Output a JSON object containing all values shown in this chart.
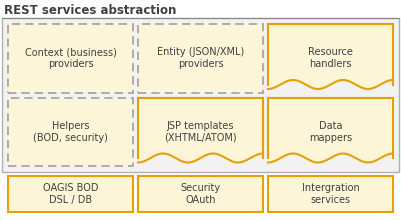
{
  "title": "REST services abstraction",
  "bg_color": "#ffffff",
  "outer_box_edgecolor": "#b0b0b0",
  "outer_box_facecolor": "#f2f2f2",
  "cell_bg": "#fdf5d8",
  "cell_border_dashed": "#a0a0a0",
  "cell_border_wave": "#e8a000",
  "bottom_box_bg": "#fdf5d8",
  "bottom_box_border": "#e8a000",
  "text_color": "#404040",
  "rows": [
    [
      {
        "text": "Context (business)\nproviders",
        "style": "dashed"
      },
      {
        "text": "Entity (JSON/XML)\nproviders",
        "style": "dashed"
      },
      {
        "text": "Resource\nhandlers",
        "style": "wave"
      }
    ],
    [
      {
        "text": "Helpers\n(BOD, security)",
        "style": "dashed"
      },
      {
        "text": "JSP templates\n(XHTML/ATOM)",
        "style": "wave"
      },
      {
        "text": "Data\nmappers",
        "style": "wave"
      }
    ]
  ],
  "bottom_row": [
    {
      "text": "OAGIS BOD\nDSL / DB"
    },
    {
      "text": "Security\nOAuth"
    },
    {
      "text": "Intergration\nservices"
    }
  ],
  "figw": 4.01,
  "figh": 2.2,
  "dpi": 100
}
